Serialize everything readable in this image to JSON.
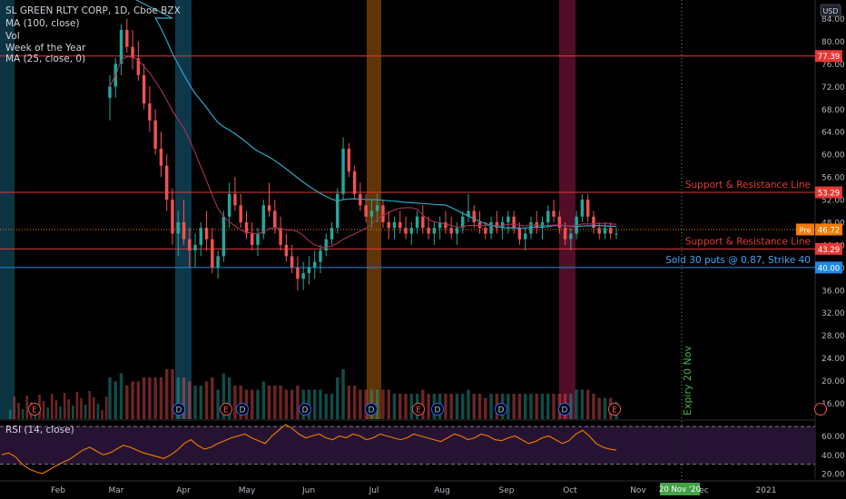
{
  "legend": {
    "title": "SL GREEN RLTY CORP, 1D, Cboe BZX",
    "ma100": "MA (100, close)",
    "vol": "Vol",
    "woy": "Week of the Year",
    "ma25": "MA (25, close, 0)",
    "rsi": "RSI (14, close)"
  },
  "currency": "USD",
  "colors": {
    "up": "#26a69a",
    "down": "#ef5350",
    "ma100": "#2ca6c4",
    "ma25": "#a8315a",
    "rsi": "#f57c00",
    "support": "#e53935",
    "puts": "#1e88e5",
    "expiry": "#4caf50",
    "price": "#f57c00"
  },
  "chart_data": [
    {
      "type": "candlestick",
      "title": "SL GREEN RLTY CORP, 1D, Cboe BZX",
      "y_ticks": [
        "84.00",
        "80.00",
        "76.00",
        "72.00",
        "68.00",
        "64.00",
        "60.00",
        "56.00",
        "52.00",
        "48.00",
        "44.00",
        "40.00",
        "36.00",
        "32.00",
        "28.00",
        "24.00",
        "20.00",
        "16.00"
      ],
      "x_ticks": [
        "Feb",
        "Mar",
        "Apr",
        "May",
        "Jun",
        "Jul",
        "Aug",
        "Sep",
        "Oct",
        "Nov",
        "Dec",
        "2021"
      ],
      "ylim": [
        14,
        86
      ],
      "horizontal_lines": [
        {
          "label": "",
          "value": 77.39,
          "tag": "77.39"
        },
        {
          "label": "Support & Resistance Line",
          "value": 53.29,
          "tag": "53.29"
        },
        {
          "label": "Support & Resistance Line",
          "value": 43.29,
          "tag": "43.29"
        },
        {
          "label": "Sold 30 puts @ 0.87, Strike 40",
          "value": 40.0,
          "tag": "40.00"
        }
      ],
      "last_price": {
        "prefix": "Pre",
        "value": 46.72,
        "tag": "46.72"
      },
      "expiry": {
        "label": "Expiry 20 Nov",
        "date_tag": "20 Nov '20"
      },
      "ohlc": [
        [
          70,
          74,
          66,
          72
        ],
        [
          72,
          77,
          70,
          76
        ],
        [
          76,
          83,
          74,
          82
        ],
        [
          82,
          84,
          78,
          79
        ],
        [
          79,
          82,
          75,
          77
        ],
        [
          77,
          80,
          73,
          74
        ],
        [
          74,
          76,
          68,
          69
        ],
        [
          69,
          72,
          64,
          66
        ],
        [
          66,
          68,
          60,
          61
        ],
        [
          61,
          64,
          56,
          58
        ],
        [
          58,
          60,
          50,
          52
        ],
        [
          52,
          54,
          44,
          46
        ],
        [
          46,
          50,
          42,
          48
        ],
        [
          48,
          52,
          44,
          45
        ],
        [
          45,
          47,
          40,
          43
        ],
        [
          43,
          46,
          40,
          44
        ],
        [
          44,
          48,
          42,
          47
        ],
        [
          47,
          50,
          43,
          45
        ],
        [
          45,
          47,
          39,
          40
        ],
        [
          40,
          43,
          38,
          42
        ],
        [
          42,
          50,
          41,
          49
        ],
        [
          49,
          55,
          47,
          53
        ],
        [
          53,
          56,
          50,
          51
        ],
        [
          51,
          53,
          47,
          48
        ],
        [
          48,
          50,
          45,
          46
        ],
        [
          46,
          48,
          43,
          44
        ],
        [
          44,
          47,
          42,
          46
        ],
        [
          46,
          52,
          45,
          51
        ],
        [
          51,
          55,
          49,
          50
        ],
        [
          50,
          52,
          46,
          47
        ],
        [
          47,
          49,
          43,
          44
        ],
        [
          44,
          46,
          41,
          42
        ],
        [
          42,
          44,
          39,
          40
        ],
        [
          40,
          42,
          36,
          38
        ],
        [
          38,
          41,
          36,
          39
        ],
        [
          39,
          42,
          37,
          40
        ],
        [
          40,
          43,
          38,
          41
        ],
        [
          41,
          44,
          39,
          43
        ],
        [
          43,
          46,
          42,
          45
        ],
        [
          45,
          48,
          44,
          47
        ],
        [
          47,
          54,
          46,
          53
        ],
        [
          53,
          63,
          52,
          61
        ],
        [
          61,
          62,
          56,
          57
        ],
        [
          57,
          58,
          52,
          53
        ],
        [
          53,
          55,
          50,
          51
        ],
        [
          51,
          53,
          48,
          49
        ],
        [
          49,
          52,
          47,
          50
        ],
        [
          50,
          53,
          48,
          51
        ],
        [
          51,
          52,
          47,
          48
        ],
        [
          48,
          50,
          45,
          47
        ],
        [
          47,
          49,
          45,
          48
        ],
        [
          48,
          50,
          46,
          47
        ],
        [
          47,
          49,
          45,
          46
        ],
        [
          46,
          48,
          44,
          47
        ],
        [
          47,
          50,
          46,
          49
        ],
        [
          49,
          51,
          46,
          47
        ],
        [
          47,
          49,
          45,
          46
        ],
        [
          46,
          48,
          44,
          47
        ],
        [
          47,
          49,
          45,
          48
        ],
        [
          48,
          50,
          46,
          47
        ],
        [
          47,
          49,
          45,
          46
        ],
        [
          46,
          48,
          44,
          47
        ],
        [
          47,
          50,
          46,
          49
        ],
        [
          49,
          53,
          48,
          50
        ],
        [
          50,
          51,
          47,
          48
        ],
        [
          48,
          50,
          46,
          47
        ],
        [
          47,
          48,
          45,
          46
        ],
        [
          46,
          49,
          45,
          48
        ],
        [
          48,
          50,
          46,
          47
        ],
        [
          47,
          49,
          45,
          48
        ],
        [
          48,
          50,
          46,
          49
        ],
        [
          49,
          50,
          46,
          47
        ],
        [
          47,
          48,
          44,
          45
        ],
        [
          45,
          47,
          43,
          46
        ],
        [
          46,
          49,
          45,
          48
        ],
        [
          48,
          50,
          46,
          47
        ],
        [
          47,
          49,
          45,
          48
        ],
        [
          48,
          51,
          47,
          50
        ],
        [
          50,
          52,
          48,
          49
        ],
        [
          49,
          50,
          46,
          47
        ],
        [
          47,
          48,
          44,
          45
        ],
        [
          45,
          47,
          43,
          46
        ],
        [
          46,
          50,
          45,
          49
        ],
        [
          49,
          53,
          48,
          52
        ],
        [
          52,
          53,
          48,
          49
        ],
        [
          49,
          50,
          46,
          47
        ],
        [
          47,
          48,
          45,
          46
        ],
        [
          46,
          48,
          45,
          47
        ],
        [
          47,
          48,
          45,
          46
        ],
        [
          46,
          47,
          45,
          46
        ]
      ],
      "volume_ylim": [
        0,
        100
      ]
    },
    {
      "type": "line",
      "title": "RSI (14, close)",
      "y_ticks": [
        "60.00",
        "40.00",
        "20.00"
      ],
      "ylim": [
        15,
        75
      ],
      "bands": [
        70,
        30
      ],
      "values": [
        40,
        42,
        38,
        30,
        25,
        22,
        20,
        24,
        28,
        32,
        35,
        40,
        45,
        48,
        44,
        40,
        42,
        46,
        50,
        48,
        45,
        42,
        40,
        38,
        36,
        40,
        45,
        52,
        56,
        50,
        46,
        48,
        52,
        55,
        58,
        60,
        62,
        58,
        55,
        52,
        60,
        66,
        72,
        68,
        62,
        58,
        60,
        62,
        58,
        56,
        60,
        58,
        62,
        60,
        56,
        58,
        62,
        60,
        58,
        56,
        58,
        62,
        60,
        58,
        56,
        54,
        58,
        62,
        60,
        56,
        58,
        62,
        60,
        56,
        55,
        58,
        60,
        56,
        52,
        54,
        58,
        60,
        56,
        52,
        55,
        62,
        66,
        60,
        52,
        48,
        46,
        45
      ]
    }
  ]
}
